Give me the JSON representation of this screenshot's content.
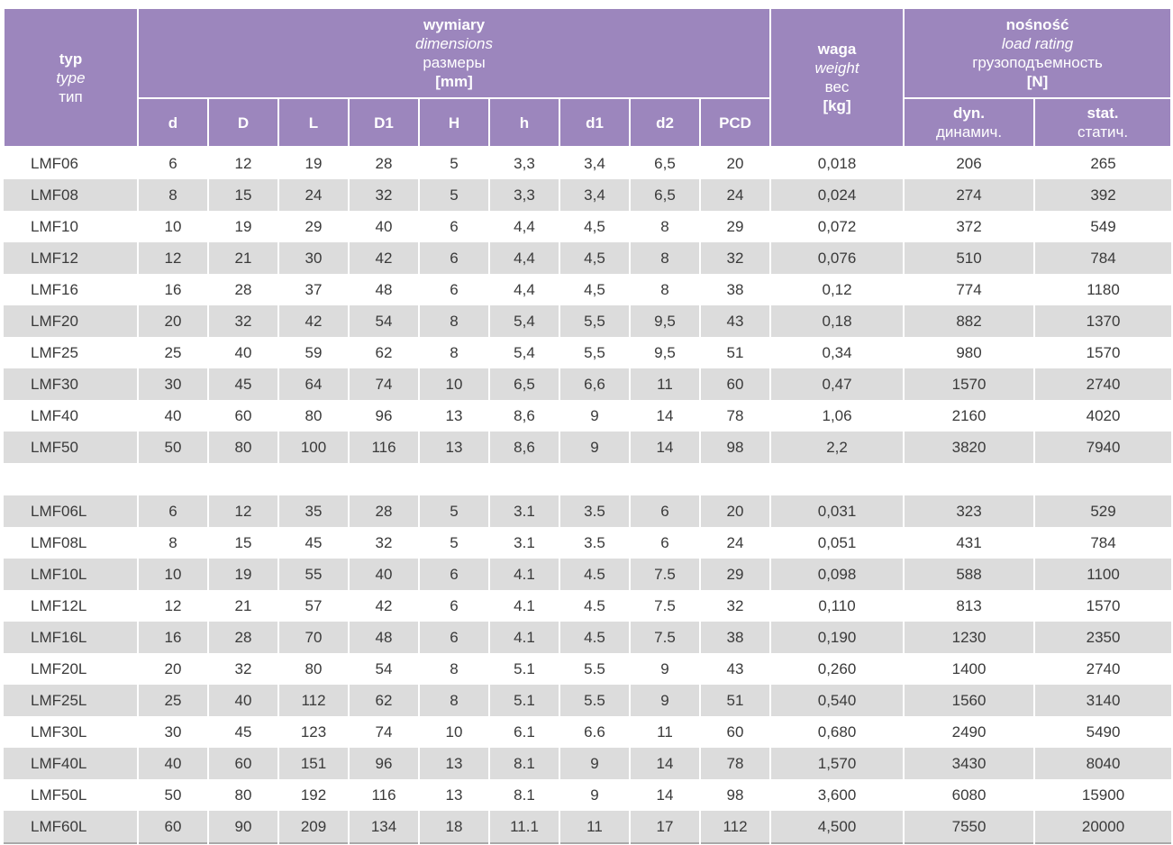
{
  "colors": {
    "header_purple": "#9c86bd",
    "header_text": "#ffffff",
    "row_stripe_gray": "#dcdcdc",
    "row_white": "#ffffff",
    "body_text": "#3a3a3a",
    "bottom_rule_gray": "#a9a9a9"
  },
  "table": {
    "header": {
      "type": {
        "pl": "typ",
        "en": "type",
        "ru": "тип"
      },
      "dimensions": {
        "pl": "wymiary",
        "en": "dimensions",
        "ru": "размеры",
        "unit": "[mm]"
      },
      "dim_columns": [
        "d",
        "D",
        "L",
        "D1",
        "H",
        "h",
        "d1",
        "d2",
        "PCD"
      ],
      "weight": {
        "pl": "waga",
        "en": "weight",
        "ru": "вес",
        "unit": "[kg]"
      },
      "load_rating": {
        "pl": "nośność",
        "en": "load rating",
        "ru": "грузоподъемность",
        "unit": "[N]"
      },
      "dynamic": {
        "en": "dyn.",
        "ru": "динамич."
      },
      "static": {
        "en": "stat.",
        "ru": "статич."
      }
    },
    "sections": [
      {
        "first_row_shade": "white",
        "rows": [
          [
            "LMF06",
            "6",
            "12",
            "19",
            "28",
            "5",
            "3,3",
            "3,4",
            "6,5",
            "20",
            "0,018",
            "206",
            "265"
          ],
          [
            "LMF08",
            "8",
            "15",
            "24",
            "32",
            "5",
            "3,3",
            "3,4",
            "6,5",
            "24",
            "0,024",
            "274",
            "392"
          ],
          [
            "LMF10",
            "10",
            "19",
            "29",
            "40",
            "6",
            "4,4",
            "4,5",
            "8",
            "29",
            "0,072",
            "372",
            "549"
          ],
          [
            "LMF12",
            "12",
            "21",
            "30",
            "42",
            "6",
            "4,4",
            "4,5",
            "8",
            "32",
            "0,076",
            "510",
            "784"
          ],
          [
            "LMF16",
            "16",
            "28",
            "37",
            "48",
            "6",
            "4,4",
            "4,5",
            "8",
            "38",
            "0,12",
            "774",
            "1180"
          ],
          [
            "LMF20",
            "20",
            "32",
            "42",
            "54",
            "8",
            "5,4",
            "5,5",
            "9,5",
            "43",
            "0,18",
            "882",
            "1370"
          ],
          [
            "LMF25",
            "25",
            "40",
            "59",
            "62",
            "8",
            "5,4",
            "5,5",
            "9,5",
            "51",
            "0,34",
            "980",
            "1570"
          ],
          [
            "LMF30",
            "30",
            "45",
            "64",
            "74",
            "10",
            "6,5",
            "6,6",
            "11",
            "60",
            "0,47",
            "1570",
            "2740"
          ],
          [
            "LMF40",
            "40",
            "60",
            "80",
            "96",
            "13",
            "8,6",
            "9",
            "14",
            "78",
            "1,06",
            "2160",
            "4020"
          ],
          [
            "LMF50",
            "50",
            "80",
            "100",
            "116",
            "13",
            "8,6",
            "9",
            "14",
            "98",
            "2,2",
            "3820",
            "7940"
          ]
        ]
      },
      {
        "first_row_shade": "gray",
        "rows": [
          [
            "LMF06L",
            "6",
            "12",
            "35",
            "28",
            "5",
            "3.1",
            "3.5",
            "6",
            "20",
            "0,031",
            "323",
            "529"
          ],
          [
            "LMF08L",
            "8",
            "15",
            "45",
            "32",
            "5",
            "3.1",
            "3.5",
            "6",
            "24",
            "0,051",
            "431",
            "784"
          ],
          [
            "LMF10L",
            "10",
            "19",
            "55",
            "40",
            "6",
            "4.1",
            "4.5",
            "7.5",
            "29",
            "0,098",
            "588",
            "1100"
          ],
          [
            "LMF12L",
            "12",
            "21",
            "57",
            "42",
            "6",
            "4.1",
            "4.5",
            "7.5",
            "32",
            "0,110",
            "813",
            "1570"
          ],
          [
            "LMF16L",
            "16",
            "28",
            "70",
            "48",
            "6",
            "4.1",
            "4.5",
            "7.5",
            "38",
            "0,190",
            "1230",
            "2350"
          ],
          [
            "LMF20L",
            "20",
            "32",
            "80",
            "54",
            "8",
            "5.1",
            "5.5",
            "9",
            "43",
            "0,260",
            "1400",
            "2740"
          ],
          [
            "LMF25L",
            "25",
            "40",
            "112",
            "62",
            "8",
            "5.1",
            "5.5",
            "9",
            "51",
            "0,540",
            "1560",
            "3140"
          ],
          [
            "LMF30L",
            "30",
            "45",
            "123",
            "74",
            "10",
            "6.1",
            "6.6",
            "11",
            "60",
            "0,680",
            "2490",
            "5490"
          ],
          [
            "LMF40L",
            "40",
            "60",
            "151",
            "96",
            "13",
            "8.1",
            "9",
            "14",
            "78",
            "1,570",
            "3430",
            "8040"
          ],
          [
            "LMF50L",
            "50",
            "80",
            "192",
            "116",
            "13",
            "8.1",
            "9",
            "14",
            "98",
            "3,600",
            "6080",
            "15900"
          ],
          [
            "LMF60L",
            "60",
            "90",
            "209",
            "134",
            "18",
            "11.1",
            "11",
            "17",
            "112",
            "4,500",
            "7550",
            "20000"
          ]
        ]
      }
    ]
  }
}
